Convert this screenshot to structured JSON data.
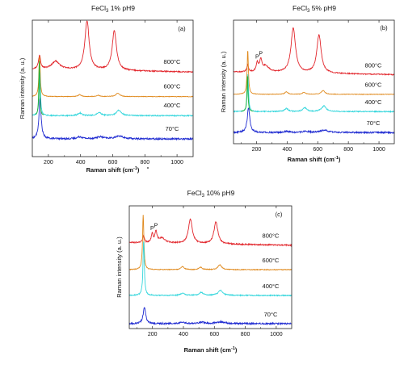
{
  "colors": {
    "70C": "#1f2bd1",
    "400C": "#34d6dc",
    "600C": "#e08a1e",
    "800C": "#e2262c",
    "green": "#22b030",
    "axis": "#222222"
  },
  "chart_data": [
    {
      "type": "line",
      "panel_label": "(a)",
      "title_main": "FeCl",
      "title_sub": "3",
      "title_rest": " 1% pH9",
      "xlabel_main": "Raman shift (cm",
      "xlabel_sup": "-1",
      "xlabel_end": ")",
      "ylabel": "Raman intensity (a. u.)",
      "xlim": [
        100,
        1100
      ],
      "xticks": [
        200,
        400,
        600,
        800,
        1000
      ],
      "x_tick_labels": [
        "200",
        "400",
        "600",
        "800",
        "1000"
      ],
      "series": [
        {
          "name": "800°C",
          "color": "#e2262c",
          "offset": 0.62,
          "noise": 0.004,
          "peaks": [
            [
              145,
              0.1,
              8
            ],
            [
              245,
              0.06,
              30
            ],
            [
              440,
              0.36,
              16
            ],
            [
              610,
              0.29,
              16
            ]
          ],
          "base": 0.02,
          "slope": -2e-05
        },
        {
          "name": "600°C",
          "color": "#e08a1e",
          "offset": 0.44,
          "noise": 0.002,
          "peaks": [
            [
              145,
              0.3,
              5
            ],
            [
              395,
              0.015,
              10
            ],
            [
              510,
              0.01,
              10
            ],
            [
              632,
              0.025,
              14
            ]
          ],
          "base": 0.0,
          "slope": 0
        },
        {
          "name": "400°C",
          "color": "#34d6dc",
          "offset": 0.3,
          "noise": 0.004,
          "peaks": [
            [
              146,
              0.32,
              5
            ],
            [
              395,
              0.02,
              14
            ],
            [
              515,
              0.025,
              16
            ],
            [
              638,
              0.04,
              18
            ]
          ],
          "base": 0.0,
          "slope": 0
        },
        {
          "name": "70°C",
          "color": "#1f2bd1",
          "offset": 0.13,
          "noise": 0.006,
          "peaks": [
            [
              148,
              0.3,
              8
            ],
            [
              395,
              0.015,
              20
            ],
            [
              520,
              0.015,
              25
            ],
            [
              640,
              0.02,
              30
            ]
          ],
          "base": 0.0,
          "slope": 0
        }
      ],
      "green_peak": {
        "x": 143,
        "height": 0.7
      }
    },
    {
      "type": "line",
      "panel_label": "(b)",
      "title_main": "FeCl",
      "title_sub": "3",
      "title_rest": " 5% pH9",
      "xlabel_main": "Raman shift (cm",
      "xlabel_sup": "-1",
      "xlabel_end": ")",
      "ylabel": "Raman intensity (a. u.)",
      "xlim": [
        50,
        1100
      ],
      "xticks": [
        200,
        400,
        600,
        800,
        1000
      ],
      "x_tick_labels": [
        "200",
        "400",
        "600",
        "800",
        "1000"
      ],
      "annotations": [
        {
          "text": "P",
          "x": 205
        },
        {
          "text": "P",
          "x": 228
        }
      ],
      "series": [
        {
          "name": "800°C",
          "color": "#e2262c",
          "offset": 0.56,
          "noise": 0.004,
          "peaks": [
            [
              142,
              0.06,
              6
            ],
            [
              205,
              0.07,
              8
            ],
            [
              228,
              0.09,
              9
            ],
            [
              260,
              0.05,
              25
            ],
            [
              440,
              0.36,
              18
            ],
            [
              608,
              0.31,
              17
            ]
          ],
          "base": 0.02,
          "slope": -2e-05
        },
        {
          "name": "600°C",
          "color": "#e08a1e",
          "offset": 0.4,
          "noise": 0.002,
          "peaks": [
            [
              143,
              0.36,
              5
            ],
            [
              395,
              0.02,
              12
            ],
            [
              510,
              0.015,
              12
            ],
            [
              635,
              0.03,
              14
            ]
          ],
          "base": 0.0,
          "slope": 0
        },
        {
          "name": "400°C",
          "color": "#34d6dc",
          "offset": 0.26,
          "noise": 0.004,
          "peaks": [
            [
              144,
              0.3,
              5
            ],
            [
              395,
              0.025,
              14
            ],
            [
              515,
              0.03,
              16
            ],
            [
              640,
              0.045,
              18
            ]
          ],
          "base": 0.0,
          "slope": 0
        },
        {
          "name": "70°C",
          "color": "#1f2bd1",
          "offset": 0.09,
          "noise": 0.006,
          "peaks": [
            [
              148,
              0.2,
              10
            ],
            [
              395,
              0.01,
              20
            ],
            [
              520,
              0.01,
              25
            ],
            [
              640,
              0.02,
              30
            ]
          ],
          "base": 0.0,
          "slope": 0
        },
        {
          "name": "",
          "color": "#22b030",
          "offset": 0.26,
          "noise": 0.0,
          "peaks": [
            [
              141,
              0.3,
              4
            ]
          ],
          "base": 0.0,
          "slope": 0,
          "xmax": 180
        }
      ]
    },
    {
      "type": "line",
      "panel_label": "(c)",
      "title_main": "FeCl",
      "title_sub": "3",
      "title_rest": " 10% pH9",
      "xlabel_main": "Raman shift (cm",
      "xlabel_sup": "-1",
      "xlabel_end": ")",
      "ylabel": "Raman intensity (a. u.)",
      "xlim": [
        50,
        1100
      ],
      "xticks": [
        200,
        400,
        600,
        800,
        1000
      ],
      "x_tick_labels": [
        "200",
        "400",
        "600",
        "800",
        "1000"
      ],
      "annotations": [
        {
          "text": "P",
          "x": 198
        },
        {
          "text": "P",
          "x": 222
        }
      ],
      "series": [
        {
          "name": "800°C",
          "color": "#e2262c",
          "offset": 0.68,
          "noise": 0.005,
          "peaks": [
            [
              142,
              0.06,
              6
            ],
            [
              198,
              0.07,
              7
            ],
            [
              222,
              0.09,
              8
            ],
            [
              260,
              0.04,
              25
            ],
            [
              445,
              0.2,
              15
            ],
            [
              610,
              0.18,
              15
            ]
          ],
          "base": 0.02,
          "slope": -2e-05
        },
        {
          "name": "600°C",
          "color": "#e08a1e",
          "offset": 0.48,
          "noise": 0.003,
          "peaks": [
            [
              140,
              0.45,
              5
            ],
            [
              395,
              0.025,
              12
            ],
            [
              510,
              0.02,
              12
            ],
            [
              635,
              0.04,
              14
            ]
          ],
          "base": 0.0,
          "slope": 0
        },
        {
          "name": "400°C",
          "color": "#34d6dc",
          "offset": 0.27,
          "noise": 0.004,
          "peaks": [
            [
              143,
              0.45,
              5
            ],
            [
              395,
              0.02,
              14
            ],
            [
              515,
              0.025,
              16
            ],
            [
              640,
              0.04,
              18
            ]
          ],
          "base": 0.0,
          "slope": 0
        },
        {
          "name": "70°C",
          "color": "#1f2bd1",
          "offset": 0.04,
          "noise": 0.006,
          "peaks": [
            [
              148,
              0.13,
              10
            ],
            [
              395,
              0.01,
              20
            ],
            [
              520,
              0.01,
              25
            ],
            [
              640,
              0.015,
              30
            ]
          ],
          "base": 0.0,
          "slope": 0
        }
      ]
    }
  ]
}
